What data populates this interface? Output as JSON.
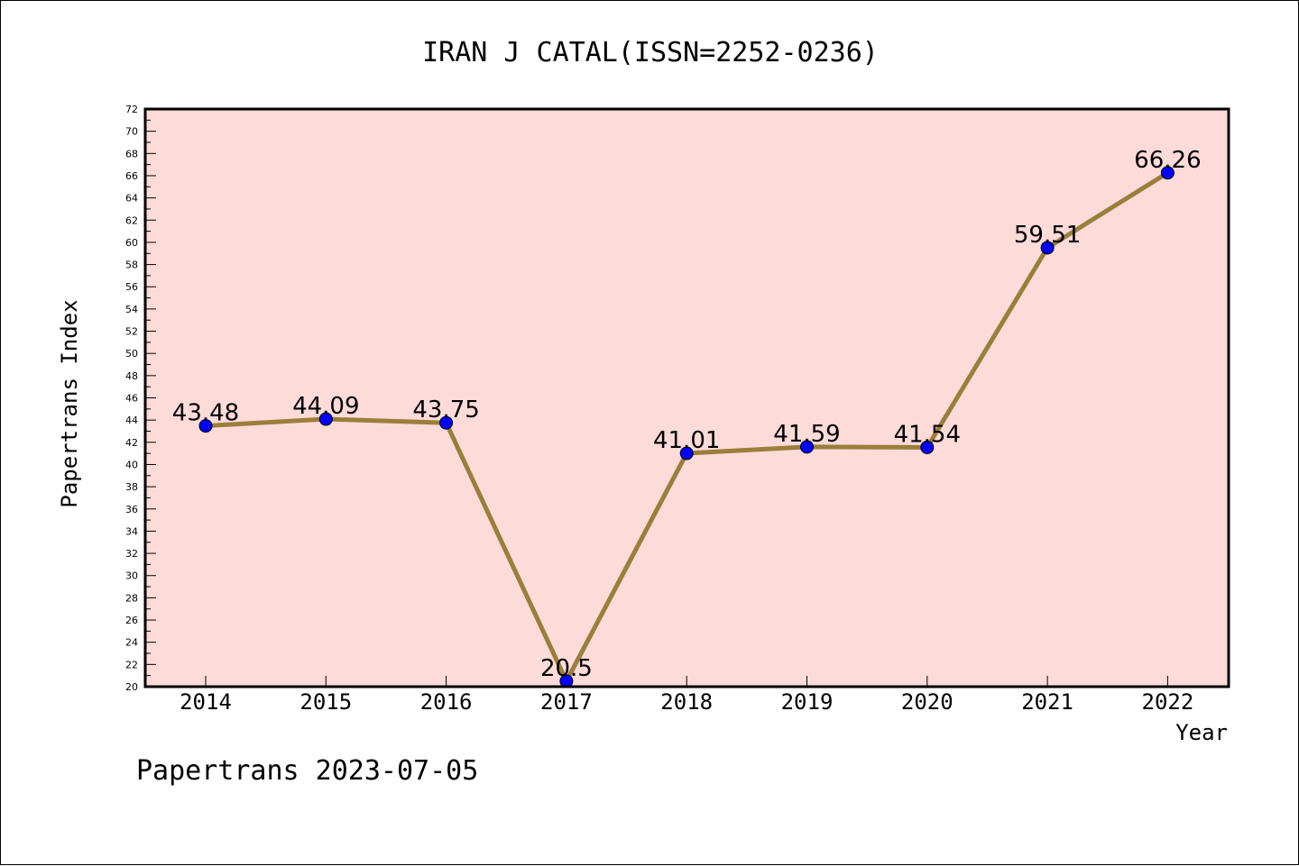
{
  "chart_data": {
    "type": "line",
    "title": "IRAN J CATAL(ISSN=2252-0236)",
    "xlabel": "Year",
    "ylabel": "Papertrans Index",
    "footer": "Papertrans 2023-07-05",
    "categories": [
      "2014",
      "2015",
      "2016",
      "2017",
      "2018",
      "2019",
      "2020",
      "2021",
      "2022"
    ],
    "values": [
      43.48,
      44.09,
      43.75,
      20.5,
      41.01,
      41.59,
      41.54,
      59.51,
      66.26
    ],
    "data_labels": [
      "43.48",
      "44.09",
      "43.75",
      "20.5",
      "41.01",
      "41.59",
      "41.54",
      "59.51",
      "66.26"
    ],
    "ylim": [
      20,
      72
    ],
    "yticks": [
      "20",
      "22",
      "24",
      "26",
      "28",
      "30",
      "32",
      "34",
      "36",
      "38",
      "40",
      "42",
      "44",
      "46",
      "48",
      "50",
      "52",
      "54",
      "56",
      "58",
      "60",
      "62",
      "64",
      "66",
      "68",
      "70",
      "72"
    ],
    "grid": false,
    "colors": {
      "plot_background": "#fddbd9",
      "line": "#9a7e3a",
      "marker": "#0000ff",
      "axis": "#000000"
    }
  }
}
